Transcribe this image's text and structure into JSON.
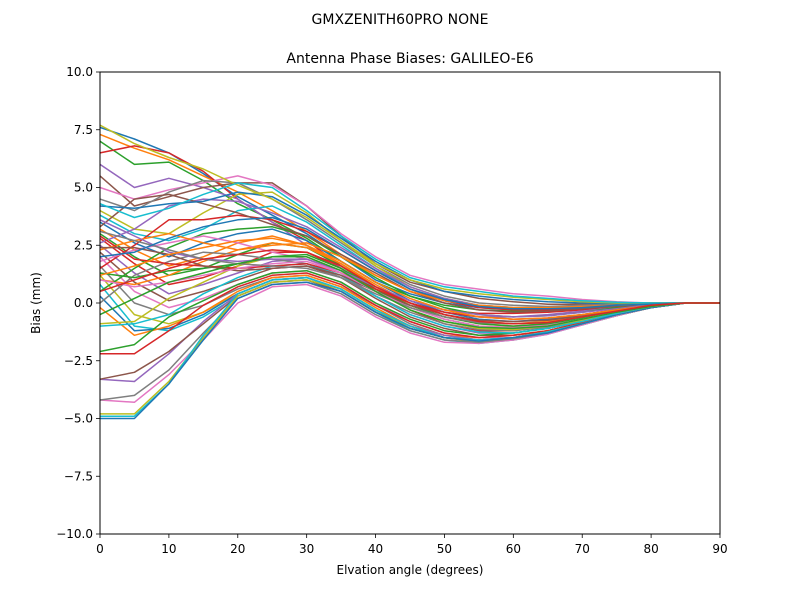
{
  "chart_data": {
    "type": "line",
    "suptitle": "GMXZENITH60PRO  NONE",
    "title": "Antenna Phase Biases: GALILEO-E6",
    "xlabel": "Elvation angle (degrees)",
    "ylabel": "Bias (mm)",
    "xlim": [
      0,
      90
    ],
    "ylim": [
      -10,
      10
    ],
    "x": [
      0,
      5,
      10,
      15,
      20,
      25,
      30,
      35,
      40,
      45,
      50,
      55,
      60,
      65,
      70,
      75,
      80,
      85,
      90
    ],
    "xticks": [
      "0",
      "10",
      "20",
      "30",
      "40",
      "50",
      "60",
      "70",
      "80",
      "90"
    ],
    "yticks": [
      "−10.0",
      "−7.5",
      "−5.0",
      "−2.5",
      "0.0",
      "2.5",
      "5.0",
      "7.5",
      "10.0"
    ],
    "grid": false,
    "colors": [
      "#1f77b4",
      "#ff7f0e",
      "#2ca02c",
      "#d62728",
      "#9467bd",
      "#8c564b",
      "#e377c2",
      "#7f7f7f",
      "#bcbd22",
      "#17becf"
    ],
    "series": [
      {
        "values": [
          7.6,
          7.1,
          6.5,
          5.6,
          4.6,
          3.8,
          3.0,
          2.0,
          1.0,
          0.4,
          0.0,
          -0.2,
          -0.25,
          -0.25,
          -0.2,
          -0.1,
          -0.05,
          0.0,
          0.0
        ]
      },
      {
        "values": [
          7.3,
          6.7,
          6.2,
          5.5,
          4.8,
          4.0,
          3.1,
          2.1,
          1.2,
          0.5,
          0.1,
          -0.15,
          -0.25,
          -0.25,
          -0.2,
          -0.1,
          -0.05,
          0.0,
          0.0
        ]
      },
      {
        "values": [
          7.0,
          6.0,
          6.1,
          5.3,
          4.3,
          3.6,
          2.8,
          1.8,
          0.9,
          0.3,
          -0.1,
          -0.3,
          -0.35,
          -0.3,
          -0.2,
          -0.1,
          -0.05,
          0.0,
          0.0
        ]
      },
      {
        "values": [
          6.5,
          6.8,
          6.5,
          5.7,
          4.5,
          3.5,
          2.7,
          1.6,
          0.7,
          0.1,
          -0.3,
          -0.45,
          -0.45,
          -0.4,
          -0.3,
          -0.15,
          -0.05,
          0.0,
          0.0
        ]
      },
      {
        "values": [
          6.0,
          5.0,
          5.4,
          5.0,
          4.5,
          3.5,
          2.5,
          1.5,
          0.5,
          -0.1,
          -0.4,
          -0.6,
          -0.6,
          -0.5,
          -0.35,
          -0.2,
          -0.08,
          0.0,
          0.0
        ]
      },
      {
        "values": [
          5.5,
          4.2,
          4.6,
          5.0,
          5.2,
          5.2,
          4.2,
          2.9,
          1.7,
          0.9,
          0.5,
          0.2,
          0.05,
          -0.05,
          -0.05,
          -0.05,
          0.0,
          0.0,
          0.0
        ]
      },
      {
        "values": [
          5.0,
          4.5,
          4.9,
          5.2,
          5.5,
          5.1,
          4.2,
          3.0,
          2.0,
          1.2,
          0.8,
          0.6,
          0.4,
          0.3,
          0.15,
          0.05,
          0.0,
          0.0,
          0.0
        ]
      },
      {
        "values": [
          4.5,
          4.0,
          4.8,
          5.3,
          5.2,
          4.5,
          3.6,
          2.6,
          1.6,
          0.8,
          0.3,
          0.0,
          -0.1,
          -0.15,
          -0.1,
          -0.05,
          0.0,
          0.0,
          0.0
        ]
      },
      {
        "values": [
          4.0,
          3.2,
          3.0,
          3.9,
          4.7,
          4.8,
          3.9,
          2.7,
          1.6,
          0.7,
          0.2,
          -0.1,
          -0.2,
          -0.2,
          -0.15,
          -0.1,
          -0.05,
          0.0,
          0.0
        ]
      },
      {
        "values": [
          3.8,
          3.0,
          2.7,
          3.2,
          4.0,
          4.2,
          3.5,
          2.5,
          1.5,
          0.6,
          0.1,
          -0.2,
          -0.3,
          -0.3,
          -0.2,
          -0.1,
          -0.05,
          0.0,
          0.0
        ]
      },
      {
        "values": [
          3.5,
          2.6,
          2.0,
          2.6,
          3.0,
          3.2,
          2.7,
          1.8,
          0.9,
          0.1,
          -0.4,
          -0.7,
          -0.8,
          -0.7,
          -0.5,
          -0.3,
          -0.1,
          0.0,
          0.0
        ]
      },
      {
        "values": [
          3.2,
          2.3,
          1.6,
          2.0,
          2.6,
          2.9,
          2.5,
          1.7,
          0.7,
          -0.1,
          -0.6,
          -0.9,
          -1.0,
          -0.9,
          -0.6,
          -0.3,
          -0.1,
          0.0,
          0.0
        ]
      },
      {
        "values": [
          3.0,
          2.0,
          1.2,
          1.5,
          2.1,
          2.6,
          2.4,
          1.6,
          0.6,
          -0.2,
          -0.7,
          -1.0,
          -1.1,
          -1.0,
          -0.7,
          -0.4,
          -0.15,
          0.0,
          0.0
        ]
      },
      {
        "values": [
          2.8,
          1.7,
          0.8,
          1.1,
          1.6,
          2.2,
          2.2,
          1.5,
          0.5,
          -0.3,
          -0.9,
          -1.2,
          -1.2,
          -1.0,
          -0.7,
          -0.4,
          -0.15,
          0.0,
          0.0
        ]
      },
      {
        "values": [
          2.5,
          1.3,
          0.4,
          0.8,
          1.3,
          1.8,
          1.9,
          1.3,
          0.3,
          -0.5,
          -1.0,
          -1.3,
          -1.3,
          -1.1,
          -0.8,
          -0.45,
          -0.15,
          0.0,
          0.0
        ]
      },
      {
        "values": [
          2.2,
          0.9,
          0.1,
          0.5,
          1.0,
          1.5,
          1.6,
          1.1,
          0.2,
          -0.6,
          -1.1,
          -1.4,
          -1.4,
          -1.2,
          -0.85,
          -0.5,
          -0.2,
          0.0,
          0.0
        ]
      },
      {
        "values": [
          2.0,
          0.5,
          -0.2,
          0.2,
          0.8,
          1.3,
          1.4,
          0.9,
          0.0,
          -0.8,
          -1.3,
          -1.5,
          -1.5,
          -1.2,
          -0.9,
          -0.5,
          -0.2,
          0.0,
          0.0
        ]
      },
      {
        "values": [
          1.6,
          0.0,
          -0.5,
          -0.1,
          0.6,
          1.1,
          1.2,
          0.7,
          -0.1,
          -0.9,
          -1.4,
          -1.6,
          -1.5,
          -1.3,
          -0.9,
          -0.55,
          -0.2,
          0.0,
          0.0
        ]
      },
      {
        "values": [
          1.2,
          -0.5,
          -0.9,
          -0.4,
          0.4,
          1.0,
          1.1,
          0.6,
          -0.3,
          -1.0,
          -1.5,
          -1.7,
          -1.6,
          -1.3,
          -0.95,
          -0.55,
          -0.2,
          0.0,
          0.0
        ]
      },
      {
        "values": [
          0.8,
          -1.0,
          -1.2,
          -0.6,
          0.3,
          0.9,
          1.0,
          0.5,
          -0.4,
          -1.2,
          -1.6,
          -1.75,
          -1.6,
          -1.35,
          -0.95,
          -0.55,
          -0.2,
          0.0,
          0.0
        ]
      },
      {
        "values": [
          0.3,
          -1.2,
          -1.1,
          -0.5,
          0.4,
          1.0,
          1.1,
          0.6,
          -0.3,
          -1.1,
          -1.5,
          -1.6,
          -1.5,
          -1.25,
          -0.9,
          -0.5,
          -0.2,
          0.0,
          0.0
        ]
      },
      {
        "values": [
          -0.2,
          -1.4,
          -1.0,
          -0.4,
          0.5,
          1.1,
          1.2,
          0.7,
          -0.2,
          -1.0,
          -1.4,
          -1.5,
          -1.4,
          -1.2,
          -0.85,
          -0.5,
          -0.2,
          0.0,
          0.0
        ]
      },
      {
        "values": [
          -2.1,
          -1.8,
          -0.6,
          0.1,
          0.8,
          1.3,
          1.4,
          0.9,
          0.0,
          -0.7,
          -1.2,
          -1.4,
          -1.3,
          -1.1,
          -0.8,
          -0.45,
          -0.15,
          0.0,
          0.0
        ]
      },
      {
        "values": [
          -2.2,
          -2.2,
          -1.2,
          -0.1,
          0.7,
          1.2,
          1.3,
          0.8,
          -0.1,
          -0.8,
          -1.3,
          -1.5,
          -1.4,
          -1.2,
          -0.85,
          -0.5,
          -0.2,
          0.0,
          0.0
        ]
      },
      {
        "values": [
          -3.3,
          -3.4,
          -2.2,
          -0.8,
          0.4,
          1.0,
          1.1,
          0.6,
          -0.3,
          -1.0,
          -1.4,
          -1.6,
          -1.5,
          -1.25,
          -0.9,
          -0.5,
          -0.2,
          0.0,
          0.0
        ]
      },
      {
        "values": [
          -3.3,
          -3.0,
          -2.1,
          -0.9,
          0.3,
          0.9,
          1.0,
          0.5,
          -0.4,
          -1.1,
          -1.5,
          -1.65,
          -1.55,
          -1.3,
          -0.9,
          -0.55,
          -0.2,
          0.0,
          0.0
        ]
      },
      {
        "values": [
          -4.2,
          -4.3,
          -3.1,
          -1.6,
          0.0,
          0.7,
          0.8,
          0.3,
          -0.6,
          -1.3,
          -1.7,
          -1.75,
          -1.6,
          -1.35,
          -0.95,
          -0.55,
          -0.2,
          0.0,
          0.0
        ]
      },
      {
        "values": [
          -4.2,
          -4.0,
          -2.9,
          -1.3,
          0.2,
          0.8,
          0.9,
          0.4,
          -0.5,
          -1.2,
          -1.6,
          -1.7,
          -1.55,
          -1.3,
          -0.9,
          -0.5,
          -0.2,
          0.0,
          0.0
        ]
      },
      {
        "values": [
          -4.8,
          -4.8,
          -3.4,
          -1.5,
          0.3,
          0.9,
          1.0,
          0.6,
          -0.3,
          -1.1,
          -1.5,
          -1.65,
          -1.5,
          -1.25,
          -0.9,
          -0.5,
          -0.2,
          0.0,
          0.0
        ]
      },
      {
        "values": [
          -4.9,
          -4.9,
          -3.5,
          -1.4,
          0.4,
          1.0,
          1.1,
          0.6,
          -0.3,
          -1.0,
          -1.5,
          -1.6,
          -1.5,
          -1.25,
          -0.9,
          -0.5,
          -0.2,
          0.0,
          0.0
        ]
      },
      {
        "values": [
          -5.0,
          -5.0,
          -3.5,
          -1.6,
          0.2,
          0.8,
          0.9,
          0.5,
          -0.4,
          -1.1,
          -1.5,
          -1.65,
          -1.5,
          -1.3,
          -0.9,
          -0.5,
          -0.2,
          0.0,
          0.0
        ]
      },
      {
        "values": [
          1.0,
          0.8,
          1.2,
          1.8,
          2.3,
          2.6,
          2.4,
          1.7,
          0.8,
          0.0,
          -0.5,
          -0.8,
          -0.9,
          -0.8,
          -0.6,
          -0.35,
          -0.1,
          0.0,
          0.0
        ]
      },
      {
        "values": [
          0.5,
          1.5,
          2.4,
          3.0,
          3.2,
          3.3,
          2.9,
          2.0,
          1.1,
          0.3,
          -0.2,
          -0.5,
          -0.6,
          -0.55,
          -0.4,
          -0.2,
          -0.05,
          0.0,
          0.0
        ]
      },
      {
        "values": [
          1.5,
          2.5,
          3.6,
          3.6,
          3.8,
          3.6,
          3.1,
          2.3,
          1.4,
          0.6,
          0.1,
          -0.2,
          -0.3,
          -0.3,
          -0.2,
          -0.1,
          -0.05,
          0.0,
          0.0
        ]
      },
      {
        "values": [
          2.6,
          3.2,
          4.2,
          4.5,
          4.4,
          3.9,
          3.3,
          2.4,
          1.5,
          0.7,
          0.2,
          -0.1,
          -0.2,
          -0.2,
          -0.15,
          -0.1,
          -0.05,
          0.0,
          0.0
        ]
      },
      {
        "values": [
          3.3,
          4.5,
          4.7,
          4.3,
          3.9,
          3.4,
          2.9,
          2.1,
          1.3,
          0.5,
          0.0,
          -0.3,
          -0.4,
          -0.35,
          -0.25,
          -0.15,
          -0.05,
          0.0,
          0.0
        ]
      },
      {
        "values": [
          1.8,
          2.3,
          2.6,
          2.9,
          2.6,
          2.2,
          1.9,
          1.3,
          0.5,
          -0.2,
          -0.7,
          -1.0,
          -1.05,
          -0.95,
          -0.7,
          -0.4,
          -0.15,
          0.0,
          0.0
        ]
      },
      {
        "values": [
          0.0,
          1.2,
          1.8,
          2.2,
          2.1,
          1.9,
          1.7,
          1.1,
          0.3,
          -0.4,
          -0.9,
          -1.15,
          -1.2,
          -1.05,
          -0.75,
          -0.45,
          -0.15,
          0.0,
          0.0
        ]
      },
      {
        "values": [
          -0.9,
          -0.8,
          0.2,
          0.9,
          1.6,
          2.0,
          2.0,
          1.4,
          0.5,
          -0.3,
          -0.8,
          -1.1,
          -1.15,
          -1.0,
          -0.75,
          -0.45,
          -0.15,
          0.0,
          0.0
        ]
      },
      {
        "values": [
          -1.0,
          -0.9,
          -0.5,
          0.4,
          1.1,
          1.6,
          1.7,
          1.2,
          0.3,
          -0.5,
          -1.0,
          -1.25,
          -1.3,
          -1.1,
          -0.8,
          -0.45,
          -0.15,
          0.0,
          0.0
        ]
      },
      {
        "values": [
          4.2,
          4.1,
          4.3,
          4.4,
          4.8,
          4.6,
          3.8,
          2.8,
          1.8,
          1.0,
          0.5,
          0.3,
          0.15,
          0.05,
          0.0,
          -0.02,
          0.0,
          0.0,
          0.0
        ]
      },
      {
        "values": [
          2.3,
          2.7,
          3.0,
          2.6,
          2.3,
          2.5,
          2.6,
          2.0,
          1.2,
          0.5,
          0.1,
          -0.1,
          -0.2,
          -0.2,
          -0.15,
          -0.1,
          -0.05,
          0.0,
          0.0
        ]
      },
      {
        "values": [
          1.3,
          1.1,
          1.4,
          1.5,
          1.7,
          2.0,
          2.1,
          1.5,
          0.6,
          -0.1,
          -0.6,
          -0.9,
          -1.0,
          -0.9,
          -0.65,
          -0.35,
          -0.1,
          0.0,
          0.0
        ]
      },
      {
        "values": [
          2.9,
          1.9,
          1.7,
          1.6,
          1.5,
          1.6,
          1.7,
          1.3,
          0.6,
          0.0,
          -0.4,
          -0.6,
          -0.7,
          -0.65,
          -0.5,
          -0.3,
          -0.1,
          0.0,
          0.0
        ]
      },
      {
        "values": [
          3.6,
          2.9,
          2.2,
          1.9,
          1.8,
          1.9,
          1.9,
          1.4,
          0.7,
          0.1,
          -0.3,
          -0.5,
          -0.6,
          -0.55,
          -0.4,
          -0.25,
          -0.08,
          0.0,
          0.0
        ]
      },
      {
        "values": [
          2.4,
          2.4,
          2.1,
          1.6,
          1.4,
          1.5,
          1.6,
          1.2,
          0.5,
          -0.1,
          -0.5,
          -0.75,
          -0.8,
          -0.75,
          -0.55,
          -0.3,
          -0.1,
          0.0,
          0.0
        ]
      },
      {
        "values": [
          1.0,
          0.7,
          0.9,
          1.2,
          1.5,
          1.7,
          1.8,
          1.3,
          0.5,
          -0.2,
          -0.7,
          -1.0,
          -1.1,
          -1.0,
          -0.7,
          -0.4,
          -0.15,
          0.0,
          0.0
        ]
      },
      {
        "values": [
          3.1,
          2.7,
          2.3,
          1.9,
          1.7,
          1.6,
          1.5,
          1.1,
          0.4,
          -0.2,
          -0.6,
          -0.85,
          -0.9,
          -0.85,
          -0.6,
          -0.35,
          -0.1,
          0.0,
          0.0
        ]
      },
      {
        "values": [
          7.7,
          6.9,
          6.3,
          5.8,
          5.1,
          4.5,
          3.7,
          2.7,
          1.7,
          1.0,
          0.6,
          0.4,
          0.25,
          0.15,
          0.05,
          0.0,
          0.0,
          0.0,
          0.0
        ]
      },
      {
        "values": [
          4.3,
          3.7,
          4.1,
          4.7,
          5.2,
          5.0,
          4.0,
          2.9,
          1.9,
          1.1,
          0.7,
          0.5,
          0.3,
          0.2,
          0.1,
          0.03,
          0.0,
          0.0,
          0.0
        ]
      },
      {
        "values": [
          2.0,
          2.2,
          2.8,
          3.3,
          3.6,
          3.7,
          3.2,
          2.3,
          1.4,
          0.6,
          0.15,
          -0.15,
          -0.25,
          -0.25,
          -0.2,
          -0.1,
          -0.05,
          0.0,
          0.0
        ]
      },
      {
        "values": [
          1.2,
          1.6,
          2.1,
          2.4,
          2.7,
          2.8,
          2.5,
          1.8,
          0.9,
          0.2,
          -0.3,
          -0.6,
          -0.7,
          -0.65,
          -0.5,
          -0.3,
          -0.1,
          0.0,
          0.0
        ]
      },
      {
        "values": [
          -0.5,
          0.2,
          0.9,
          1.3,
          1.7,
          2.0,
          2.0,
          1.4,
          0.5,
          -0.3,
          -0.8,
          -1.05,
          -1.1,
          -1.0,
          -0.7,
          -0.4,
          -0.15,
          0.0,
          0.0
        ]
      },
      {
        "values": [
          0.5,
          1.0,
          1.5,
          1.9,
          2.1,
          2.3,
          2.2,
          1.6,
          0.7,
          0.0,
          -0.5,
          -0.8,
          -0.9,
          -0.85,
          -0.6,
          -0.35,
          -0.1,
          0.0,
          0.0
        ]
      }
    ]
  }
}
